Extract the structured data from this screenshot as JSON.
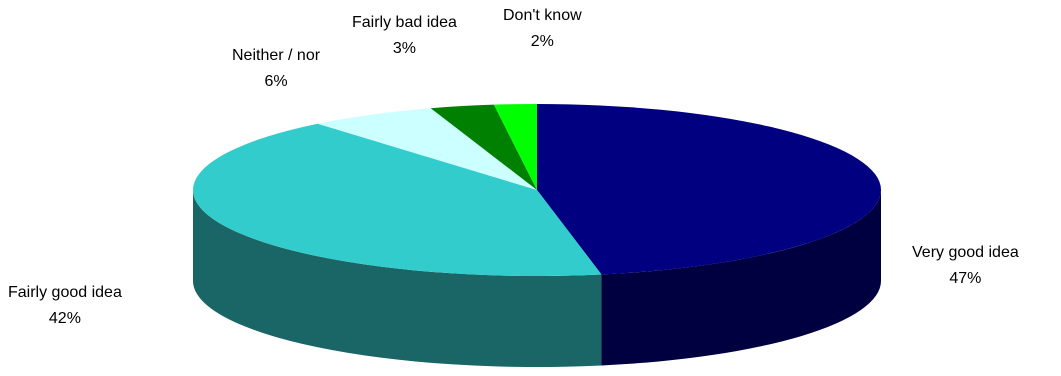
{
  "chart_data": {
    "type": "pie",
    "style": "3d",
    "start": "12 o'clock",
    "direction": "clockwise",
    "slices": [
      {
        "label": "Very good idea",
        "value": 47,
        "value_label": "47%",
        "color": "#000080",
        "side_color": "#000040"
      },
      {
        "label": "Fairly good idea",
        "value": 42,
        "value_label": "42%",
        "color": "#33CCCC",
        "side_color": "#1A6666"
      },
      {
        "label": "Neither / nor",
        "value": 6,
        "value_label": "6%",
        "color": "#CCFFFF",
        "side_color": "#99BFBF"
      },
      {
        "label": "Fairly bad idea",
        "value": 3,
        "value_label": "3%",
        "color": "#008000",
        "side_color": "#004000"
      },
      {
        "label": "Don't know",
        "value": 2,
        "value_label": "2%",
        "color": "#00FF00",
        "side_color": "#008000"
      }
    ]
  }
}
